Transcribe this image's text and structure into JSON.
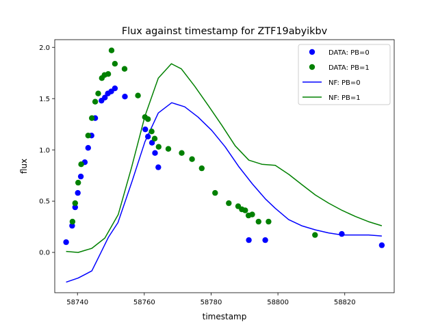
{
  "chart_data": {
    "type": "scatter",
    "title": "Flux against timestamp for ZTF19abyikbv",
    "xlabel": "timestamp",
    "ylabel": "flux",
    "xlim": [
      58733.2,
      58834.8
    ],
    "ylim": [
      -0.393,
      2.075
    ],
    "x_ticks": [
      58740,
      58760,
      58780,
      58800,
      58820
    ],
    "y_ticks": [
      0.0,
      0.5,
      1.0,
      1.5,
      2.0
    ],
    "x_tick_labels": [
      "58740",
      "58760",
      "58780",
      "58800",
      "58820"
    ],
    "y_tick_labels": [
      "0.0",
      "0.5",
      "1.0",
      "1.5",
      "2.0"
    ],
    "grid": false,
    "legend_position": "top-right",
    "colors": {
      "pb0": "#0000ff",
      "pb1": "#008000",
      "axis": "#000000"
    },
    "series": [
      {
        "name": "DATA: PB=0",
        "kind": "points",
        "color": "#0000ff",
        "points": [
          [
            58736.6,
            0.1
          ],
          [
            58738.4,
            0.26
          ],
          [
            58739.3,
            0.44
          ],
          [
            58740.1,
            0.58
          ],
          [
            58741.0,
            0.74
          ],
          [
            58742.2,
            0.88
          ],
          [
            58743.2,
            1.02
          ],
          [
            58744.2,
            1.14
          ],
          [
            58745.3,
            1.31
          ],
          [
            58747.2,
            1.48
          ],
          [
            58748.2,
            1.51
          ],
          [
            58749.1,
            1.55
          ],
          [
            58750.1,
            1.57
          ],
          [
            58751.2,
            1.6
          ],
          [
            58754.2,
            1.52
          ],
          [
            58760.3,
            1.2
          ],
          [
            58761.1,
            1.13
          ],
          [
            58762.3,
            1.07
          ],
          [
            58763.2,
            0.97
          ],
          [
            58764.2,
            0.83
          ],
          [
            58791.3,
            0.12
          ],
          [
            58796.2,
            0.12
          ],
          [
            58819.1,
            0.18
          ],
          [
            58831.1,
            0.07
          ]
        ]
      },
      {
        "name": "DATA: PB=1",
        "kind": "points",
        "color": "#008000",
        "points": [
          [
            58738.5,
            0.3
          ],
          [
            58739.3,
            0.48
          ],
          [
            58740.2,
            0.68
          ],
          [
            58741.1,
            0.86
          ],
          [
            58743.2,
            1.14
          ],
          [
            58744.3,
            1.31
          ],
          [
            58745.3,
            1.47
          ],
          [
            58746.2,
            1.55
          ],
          [
            58747.3,
            1.7
          ],
          [
            58748.1,
            1.73
          ],
          [
            58749.2,
            1.74
          ],
          [
            58750.2,
            1.97
          ],
          [
            58751.2,
            1.84
          ],
          [
            58754.1,
            1.79
          ],
          [
            58758.1,
            1.53
          ],
          [
            58760.2,
            1.32
          ],
          [
            58761.1,
            1.3
          ],
          [
            58762.2,
            1.18
          ],
          [
            58763.1,
            1.11
          ],
          [
            58764.3,
            1.03
          ],
          [
            58767.2,
            1.01
          ],
          [
            58771.2,
            0.97
          ],
          [
            58774.3,
            0.91
          ],
          [
            58777.2,
            0.82
          ],
          [
            58781.2,
            0.58
          ],
          [
            58785.3,
            0.48
          ],
          [
            58788.1,
            0.45
          ],
          [
            58789.2,
            0.42
          ],
          [
            58790.2,
            0.41
          ],
          [
            58791.2,
            0.36
          ],
          [
            58792.3,
            0.37
          ],
          [
            58794.2,
            0.3
          ],
          [
            58797.2,
            0.3
          ],
          [
            58811.1,
            0.17
          ]
        ]
      },
      {
        "name": "NF: PB=0",
        "kind": "line",
        "color": "#0000ff",
        "points": [
          [
            58736.6,
            -0.29
          ],
          [
            58740.2,
            -0.25
          ],
          [
            58744.3,
            -0.18
          ],
          [
            58747.2,
            0.01
          ],
          [
            58749.3,
            0.15
          ],
          [
            58752.1,
            0.29
          ],
          [
            58756.3,
            0.69
          ],
          [
            58760.2,
            1.08
          ],
          [
            58764.2,
            1.36
          ],
          [
            58768.2,
            1.46
          ],
          [
            58772.1,
            1.42
          ],
          [
            58776.1,
            1.32
          ],
          [
            58780.2,
            1.19
          ],
          [
            58784.2,
            1.03
          ],
          [
            58788.2,
            0.84
          ],
          [
            58792.3,
            0.67
          ],
          [
            58796.3,
            0.52
          ],
          [
            58799.2,
            0.43
          ],
          [
            58803.2,
            0.32
          ],
          [
            58807.1,
            0.26
          ],
          [
            58811.2,
            0.22
          ],
          [
            58815.2,
            0.19
          ],
          [
            58819.2,
            0.17
          ],
          [
            58823.2,
            0.17
          ],
          [
            58827.2,
            0.17
          ],
          [
            58831.1,
            0.16
          ]
        ]
      },
      {
        "name": "NF: PB=1",
        "kind": "line",
        "color": "#008000",
        "points": [
          [
            58736.6,
            0.01
          ],
          [
            58740.2,
            0.0
          ],
          [
            58744.3,
            0.04
          ],
          [
            58748.2,
            0.14
          ],
          [
            58752.2,
            0.37
          ],
          [
            58756.2,
            0.83
          ],
          [
            58760.2,
            1.33
          ],
          [
            58764.2,
            1.7
          ],
          [
            58768.1,
            1.84
          ],
          [
            58771.1,
            1.79
          ],
          [
            58775.1,
            1.62
          ],
          [
            58779.2,
            1.43
          ],
          [
            58783.2,
            1.24
          ],
          [
            58787.2,
            1.04
          ],
          [
            58791.3,
            0.9
          ],
          [
            58795.2,
            0.86
          ],
          [
            58799.2,
            0.85
          ],
          [
            58803.3,
            0.76
          ],
          [
            58807.2,
            0.66
          ],
          [
            58811.2,
            0.56
          ],
          [
            58815.2,
            0.48
          ],
          [
            58819.2,
            0.41
          ],
          [
            58823.2,
            0.35
          ],
          [
            58827.1,
            0.3
          ],
          [
            58831.1,
            0.26
          ]
        ]
      }
    ]
  }
}
